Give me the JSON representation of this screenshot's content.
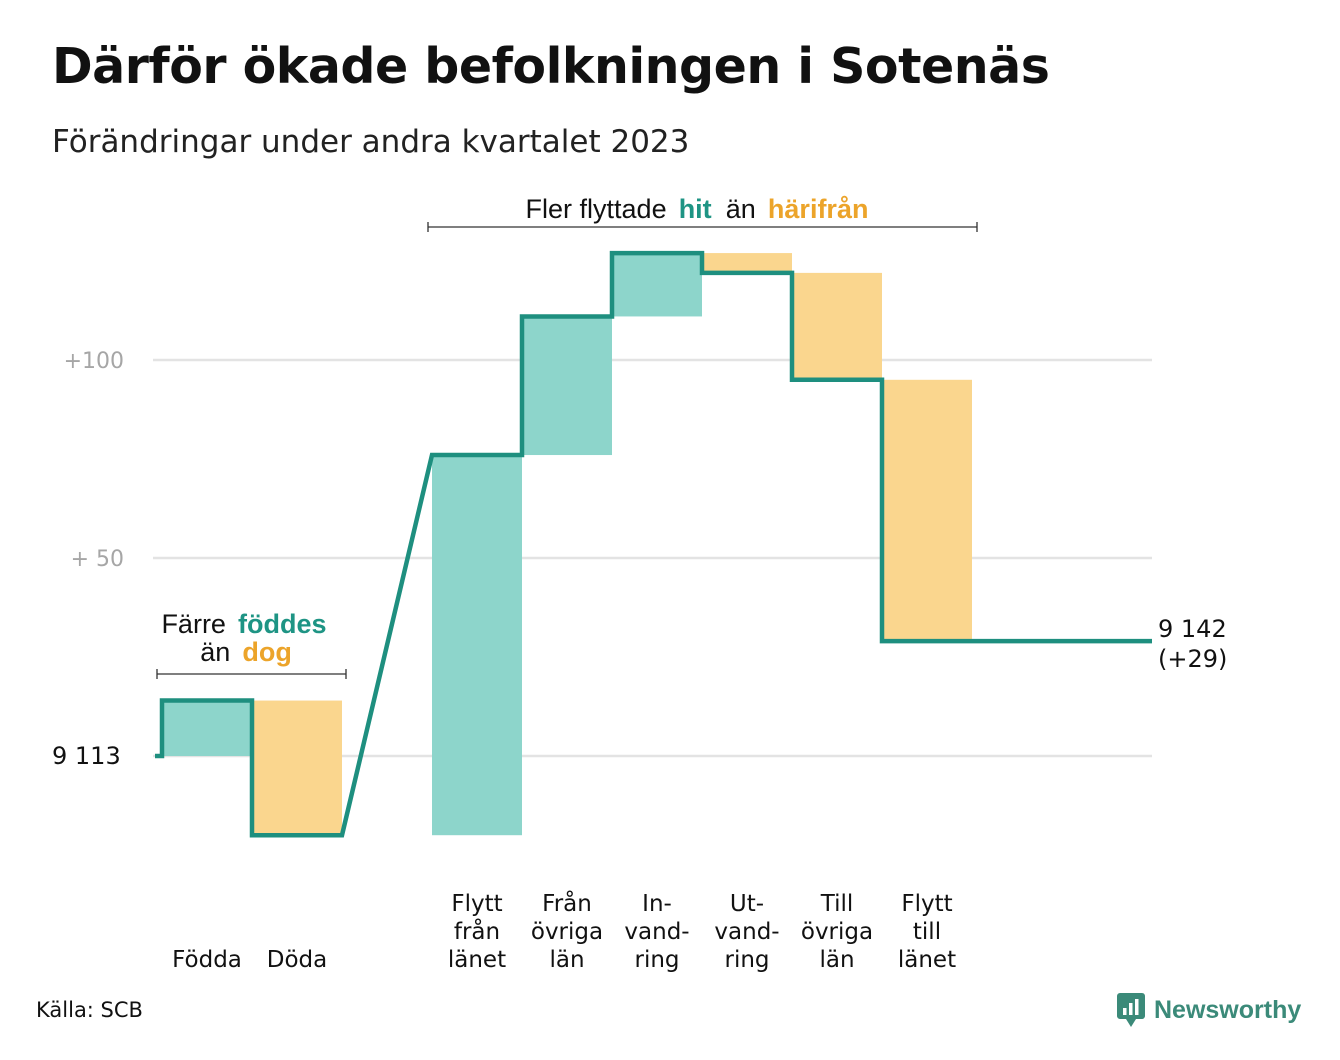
{
  "title": "Därför ökade befolkningen i Sotenäs",
  "subtitle": "Förändringar under andra kvartalet 2023",
  "source": "Källa: SCB",
  "brand": {
    "name": "Newsworthy",
    "icon": "newsworthy-logo-icon"
  },
  "colors": {
    "increase": "#8dd5cb",
    "decrease": "#fad68e",
    "line": "#1e8f7f",
    "hit": "#1e9484",
    "harifran": "#eca42a",
    "grid": "#e3e3e3"
  },
  "annotations": {
    "births": {
      "line1_a": "Färre",
      "line1_b": "föddes",
      "line2_a": "än",
      "line2_b": "dog"
    },
    "moves": {
      "part_a": "Fler flyttade",
      "part_b": "hit",
      "part_c": "än",
      "part_d": "härifrån"
    }
  },
  "chart_data": {
    "type": "waterfall",
    "title": "Därför ökade befolkningen i Sotenäs",
    "subtitle": "Förändringar under andra kvartalet 2023",
    "start": {
      "label": "9  113",
      "value": 9113
    },
    "end": {
      "label_value": "9 142",
      "label_change": "(+29)",
      "value": 9142
    },
    "y_ticks": [
      {
        "label": "+100",
        "value": 9213
      },
      {
        "label": "+  50",
        "value": 9163
      }
    ],
    "ylim": [
      9085,
      9240
    ],
    "grid": true,
    "steps": [
      {
        "label": [
          "Födda"
        ],
        "change": 14
      },
      {
        "label": [
          "Döda"
        ],
        "change": -34
      },
      {
        "label": [
          "Flytt",
          "från",
          "länet"
        ],
        "change": 96
      },
      {
        "label": [
          "Från",
          "övriga",
          "län"
        ],
        "change": 35
      },
      {
        "label": [
          "In-",
          "vand-",
          "ring"
        ],
        "change": 16
      },
      {
        "label": [
          "Ut-",
          "vand-",
          "ring"
        ],
        "change": -5
      },
      {
        "label": [
          "Till",
          "övriga",
          "län"
        ],
        "change": -27
      },
      {
        "label": [
          "Flytt",
          "till",
          "länet"
        ],
        "change": -66
      }
    ]
  }
}
